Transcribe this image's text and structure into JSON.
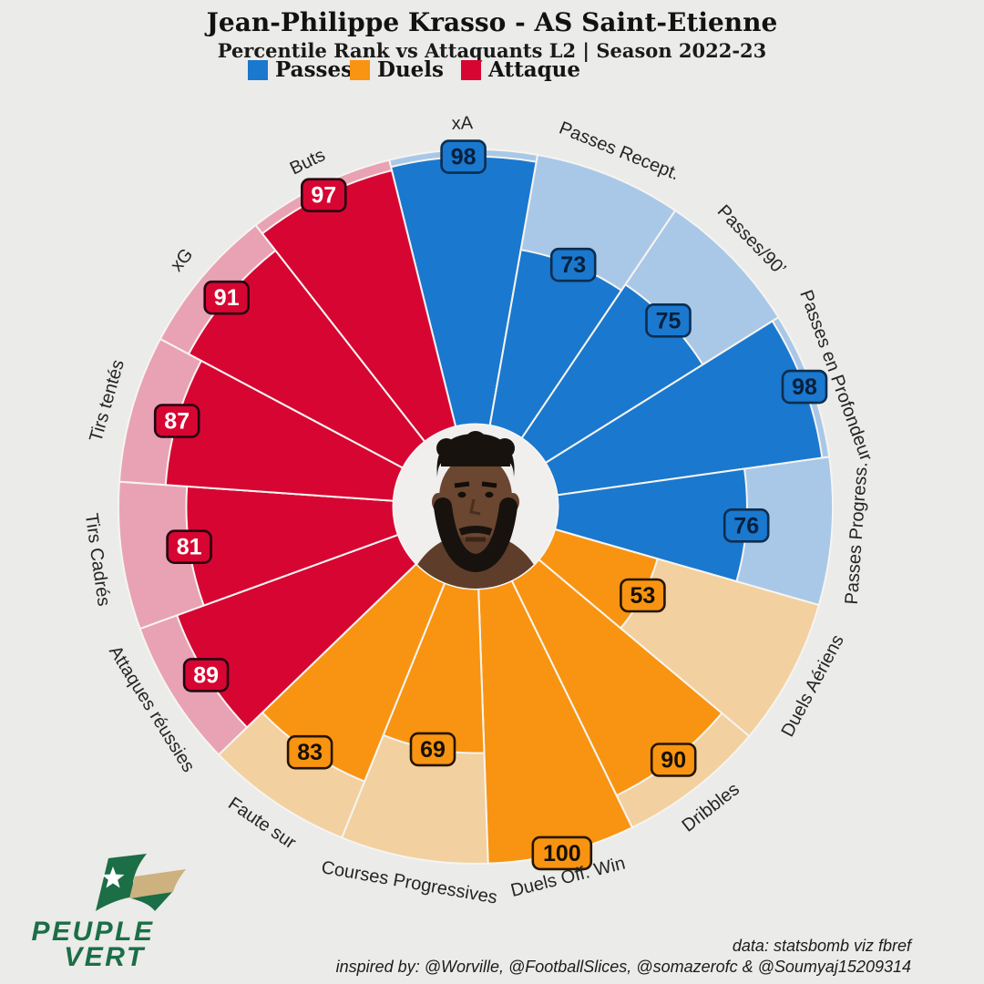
{
  "header": {
    "title": "Jean-Philippe Krasso - AS Saint-Etienne",
    "subtitle": "Percentile Rank vs Attaquants L2 | Season 2022-23"
  },
  "legend": [
    {
      "label": "Passes",
      "color": "#1A78CF"
    },
    {
      "label": "Duels",
      "color": "#F89411"
    },
    {
      "label": "Attaque",
      "color": "#D70532"
    }
  ],
  "chart_data": {
    "type": "pizza",
    "title": "Jean-Philippe Krasso - AS Saint-Etienne",
    "subtitle": "Percentile Rank vs Attaquants L2 | Season 2022-23",
    "unit": "percentile",
    "range": [
      0,
      100
    ],
    "start_angle_deg": -14,
    "slice_angle_deg": 24,
    "groups": {
      "Passes": {
        "color": "#1A78CF",
        "light": "#A9C8E8",
        "edge": "#0C2D4F",
        "text": "#06203B"
      },
      "Duels": {
        "color": "#F89411",
        "light": "#F3D0A0",
        "edge": "#231503",
        "text": "#161002"
      },
      "Attaque": {
        "color": "#D70532",
        "light": "#E8A2B4",
        "edge": "#220611",
        "text": "#FFFFFF"
      }
    },
    "slices": [
      {
        "param": "xA",
        "value": 98,
        "group": "Passes"
      },
      {
        "param": "Passes Recept.",
        "value": 73,
        "group": "Passes"
      },
      {
        "param": "Passes/90’",
        "value": 75,
        "group": "Passes"
      },
      {
        "param": "Passes en Profondeur",
        "value": 98,
        "group": "Passes"
      },
      {
        "param": "Passes Progress.",
        "value": 76,
        "group": "Passes"
      },
      {
        "param": "Duels Aériens",
        "value": 53,
        "group": "Duels"
      },
      {
        "param": "Dribbles",
        "value": 90,
        "group": "Duels"
      },
      {
        "param": "Duels Off. Win",
        "value": 100,
        "group": "Duels"
      },
      {
        "param": "Courses Progressives",
        "value": 69,
        "group": "Duels"
      },
      {
        "param": "Faute sur",
        "value": 83,
        "group": "Duels"
      },
      {
        "param": "Attaques réussies",
        "value": 89,
        "group": "Attaque"
      },
      {
        "param": "Tirs Cadrés",
        "value": 81,
        "group": "Attaque"
      },
      {
        "param": "Tirs tentés",
        "value": 87,
        "group": "Attaque"
      },
      {
        "param": "xG",
        "value": 91,
        "group": "Attaque"
      },
      {
        "param": "Buts",
        "value": 97,
        "group": "Attaque"
      }
    ]
  },
  "logo": {
    "line1": "PEUPLE",
    "line2": "VERT",
    "green": "#1B6E46",
    "gold": "#CDB17E"
  },
  "footer": {
    "line1": "data: statsbomb viz fbref",
    "line2": "inspired by: @Worville, @FootballSlices, @somazerofc & @Soumyaj15209314"
  }
}
